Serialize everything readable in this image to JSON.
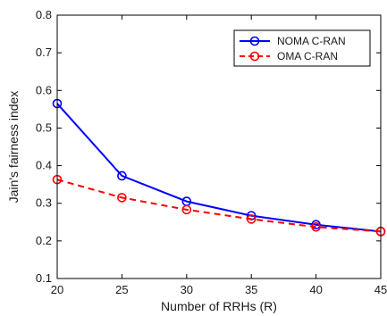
{
  "chart_data": {
    "type": "line",
    "xlabel": "Number of RRHs (R)",
    "ylabel": "Jain's fairness index",
    "x": [
      20,
      25,
      30,
      35,
      40,
      45
    ],
    "xlim": [
      20,
      45
    ],
    "ylim": [
      0.1,
      0.8
    ],
    "x_ticks": [
      "20",
      "25",
      "30",
      "35",
      "40",
      "45"
    ],
    "y_ticks": [
      "0.1",
      "0.2",
      "0.3",
      "0.4",
      "0.5",
      "0.6",
      "0.7",
      "0.8"
    ],
    "grid": false,
    "legend_position": "top-right",
    "series": [
      {
        "name": "NOMA C-RAN",
        "color": "#0000ff",
        "line_style": "solid",
        "marker": "circle",
        "values": [
          0.565,
          0.373,
          0.305,
          0.267,
          0.243,
          0.225
        ]
      },
      {
        "name": "OMA C-RAN",
        "color": "#ff0000",
        "line_style": "dashed",
        "marker": "circle",
        "values": [
          0.363,
          0.315,
          0.283,
          0.258,
          0.237,
          0.225
        ]
      }
    ]
  }
}
